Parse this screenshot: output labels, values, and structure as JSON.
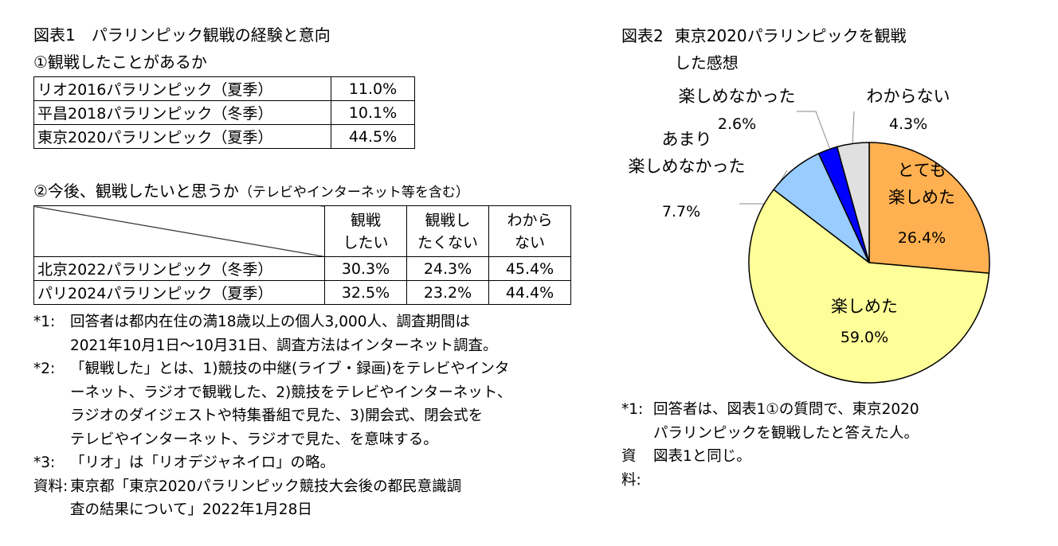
{
  "figure1": {
    "label": "図表1",
    "title": "パラリンピック観戦の経験と意向",
    "section1": {
      "title": "①観戦したことがあるか",
      "rows": [
        [
          "リオ2016パラリンピック（夏季）",
          "11.0%"
        ],
        [
          "平昌2018パラリンピック（冬季）",
          "10.1%"
        ],
        [
          "東京2020パラリンピック（夏季）",
          "44.5%"
        ]
      ]
    },
    "section2": {
      "title": "②今後、観戦したいと思うか",
      "subtitle": "（テレビやインターネット等を含む）",
      "columns": [
        "観戦\nしたい",
        "観戦し\nたくない",
        "わから\nない"
      ],
      "rows": [
        [
          "北京2022パラリンピック（冬季）",
          "30.3%",
          "24.3%",
          "45.4%"
        ],
        [
          "パリ2024パラリンピック（夏季）",
          "32.5%",
          "23.2%",
          "44.4%"
        ]
      ]
    },
    "notes": [
      {
        "mark": "*1:",
        "text": "回答者は都内在住の満18歳以上の個人3,000人、調査期間は\n2021年10月1日～10月31日、調査方法はインターネット調査。"
      },
      {
        "mark": "*2:",
        "text": "「観戦した」とは、1)競技の中継(ライブ・録画)をテレビやインタ\nーネット、ラジオで観戦した、2)競技をテレビやインターネット、\nラジオのダイジェストや特集番組で見た、3)開会式、閉会式を\nテレビやインターネット、ラジオで見た、を意味する。"
      },
      {
        "mark": "*3:",
        "text": "「リオ」は「リオデジャネイロ」の略。"
      },
      {
        "mark": "資料:",
        "text": "東京都「東京2020パラリンピック競技大会後の都民意識調\n査の結果について」2022年1月28日"
      }
    ]
  },
  "figure2": {
    "label": "図表2",
    "title": "東京2020パラリンピックを観戦\nした感想",
    "notes": [
      {
        "mark": "*1:",
        "text": "回答者は、図表1①の質問で、東京2020\nパラリンピックを観戦したと答えた人。"
      },
      {
        "mark": "資料:",
        "text": "図表1と同じ。"
      }
    ]
  },
  "chart_data": {
    "type": "pie",
    "categories": [
      "とても\n楽しめた",
      "楽しめた",
      "あまり\n楽しめなかった",
      "楽しめなかった",
      "わからない"
    ],
    "values": [
      26.4,
      59.0,
      7.7,
      2.6,
      4.3
    ],
    "value_labels": [
      "26.4%",
      "59.0%",
      "7.7%",
      "2.6%",
      "4.3%"
    ],
    "colors": [
      "#ffb050",
      "#ffff99",
      "#99ccff",
      "#0000ff",
      "#e0e0e0"
    ]
  }
}
